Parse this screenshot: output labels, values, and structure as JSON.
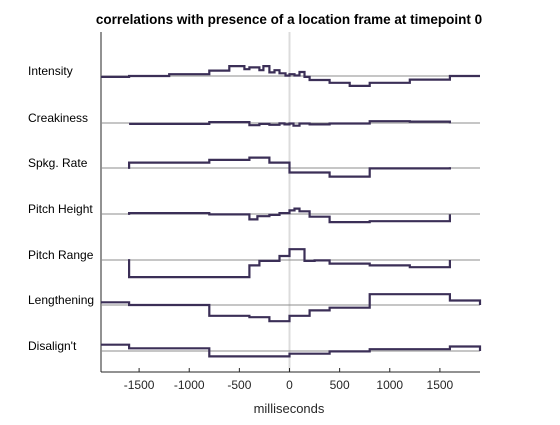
{
  "chart_data": {
    "type": "line",
    "title": "correlations with presence of a location frame at timepoint 0",
    "xlabel": "milliseconds",
    "ylabel": "",
    "xlim": [
      -1880,
      1900
    ],
    "xticks": [
      -1500,
      -1000,
      -500,
      0,
      500,
      1000,
      1500
    ],
    "xtick_labels": [
      "-1500",
      "-1000",
      "-500",
      "0",
      "500",
      "1000",
      "1500"
    ],
    "reference_line_x": 0,
    "step_units": "correlation (relative to each row baseline, arbitrary scale)",
    "series": [
      {
        "name": "Intensity",
        "points": [
          [
            -1880,
            -0.05
          ],
          [
            -1600,
            -0.05
          ],
          [
            -1600,
            0.0
          ],
          [
            -1200,
            0.0
          ],
          [
            -1200,
            0.1
          ],
          [
            -800,
            0.1
          ],
          [
            -800,
            0.3
          ],
          [
            -600,
            0.3
          ],
          [
            -600,
            0.55
          ],
          [
            -450,
            0.55
          ],
          [
            -450,
            0.38
          ],
          [
            -400,
            0.38
          ],
          [
            -400,
            0.48
          ],
          [
            -300,
            0.48
          ],
          [
            -300,
            0.32
          ],
          [
            -260,
            0.32
          ],
          [
            -260,
            0.55
          ],
          [
            -200,
            0.55
          ],
          [
            -200,
            0.2
          ],
          [
            -150,
            0.2
          ],
          [
            -150,
            0.32
          ],
          [
            -100,
            0.32
          ],
          [
            -100,
            0.15
          ],
          [
            -40,
            0.15
          ],
          [
            -40,
            0.02
          ],
          [
            0,
            0.02
          ],
          [
            0,
            0.1
          ],
          [
            50,
            0.1
          ],
          [
            50,
            0.03
          ],
          [
            100,
            0.03
          ],
          [
            100,
            0.22
          ],
          [
            150,
            0.22
          ],
          [
            150,
            -0.05
          ],
          [
            200,
            -0.05
          ],
          [
            200,
            -0.22
          ],
          [
            400,
            -0.22
          ],
          [
            400,
            -0.38
          ],
          [
            600,
            -0.38
          ],
          [
            600,
            -0.55
          ],
          [
            800,
            -0.55
          ],
          [
            800,
            -0.38
          ],
          [
            1200,
            -0.38
          ],
          [
            1200,
            -0.2
          ],
          [
            1600,
            -0.2
          ],
          [
            1600,
            0.0
          ],
          [
            1900,
            0.0
          ]
        ]
      },
      {
        "name": "Creakiness",
        "points": [
          [
            -1600,
            -0.05
          ],
          [
            -800,
            -0.05
          ],
          [
            -800,
            0.05
          ],
          [
            -400,
            0.05
          ],
          [
            -400,
            -0.12
          ],
          [
            -300,
            -0.12
          ],
          [
            -300,
            -0.05
          ],
          [
            -200,
            -0.05
          ],
          [
            -200,
            -0.1
          ],
          [
            -100,
            -0.1
          ],
          [
            -100,
            -0.02
          ],
          [
            -50,
            -0.02
          ],
          [
            -50,
            -0.08
          ],
          [
            0,
            -0.08
          ],
          [
            0,
            -0.03
          ],
          [
            40,
            -0.03
          ],
          [
            40,
            -0.15
          ],
          [
            100,
            -0.15
          ],
          [
            100,
            -0.03
          ],
          [
            200,
            -0.03
          ],
          [
            200,
            -0.08
          ],
          [
            400,
            -0.08
          ],
          [
            400,
            -0.03
          ],
          [
            800,
            -0.03
          ],
          [
            800,
            0.1
          ],
          [
            1200,
            0.1
          ],
          [
            1200,
            0.08
          ],
          [
            1600,
            0.08
          ],
          [
            1600,
            -0.02
          ]
        ]
      },
      {
        "name": "Spkg. Rate",
        "points": [
          [
            -1600,
            -0.05
          ],
          [
            -1600,
            0.3
          ],
          [
            -800,
            0.3
          ],
          [
            -800,
            0.45
          ],
          [
            -400,
            0.45
          ],
          [
            -400,
            0.58
          ],
          [
            -200,
            0.58
          ],
          [
            -200,
            0.3
          ],
          [
            0,
            0.3
          ],
          [
            0,
            -0.25
          ],
          [
            400,
            -0.25
          ],
          [
            400,
            -0.48
          ],
          [
            800,
            -0.48
          ],
          [
            800,
            -0.02
          ],
          [
            1600,
            -0.02
          ],
          [
            1600,
            0.05
          ]
        ]
      },
      {
        "name": "Pitch Height",
        "points": [
          [
            -1600,
            -0.05
          ],
          [
            -1600,
            0.05
          ],
          [
            -800,
            0.05
          ],
          [
            -800,
            -0.02
          ],
          [
            -400,
            -0.02
          ],
          [
            -400,
            -0.3
          ],
          [
            -320,
            -0.3
          ],
          [
            -320,
            -0.12
          ],
          [
            -200,
            -0.12
          ],
          [
            -200,
            -0.05
          ],
          [
            -100,
            -0.05
          ],
          [
            -100,
            0.05
          ],
          [
            0,
            0.05
          ],
          [
            0,
            0.2
          ],
          [
            50,
            0.2
          ],
          [
            50,
            0.3
          ],
          [
            100,
            0.3
          ],
          [
            100,
            0.15
          ],
          [
            200,
            0.15
          ],
          [
            200,
            -0.15
          ],
          [
            400,
            -0.15
          ],
          [
            400,
            -0.45
          ],
          [
            800,
            -0.45
          ],
          [
            800,
            -0.4
          ],
          [
            1600,
            -0.4
          ],
          [
            1600,
            -0.02
          ]
        ]
      },
      {
        "name": "Pitch Range",
        "points": [
          [
            -1600,
            0.05
          ],
          [
            -1600,
            -0.95
          ],
          [
            -400,
            -0.95
          ],
          [
            -400,
            -0.3
          ],
          [
            -300,
            -0.3
          ],
          [
            -300,
            -0.05
          ],
          [
            -100,
            -0.05
          ],
          [
            -100,
            0.22
          ],
          [
            0,
            0.22
          ],
          [
            0,
            0.6
          ],
          [
            150,
            0.6
          ],
          [
            150,
            -0.05
          ],
          [
            250,
            -0.05
          ],
          [
            250,
            -0.02
          ],
          [
            400,
            -0.02
          ],
          [
            400,
            -0.2
          ],
          [
            800,
            -0.2
          ],
          [
            800,
            -0.3
          ],
          [
            1200,
            -0.3
          ],
          [
            1200,
            -0.4
          ],
          [
            1600,
            -0.4
          ],
          [
            1600,
            0.0
          ]
        ]
      },
      {
        "name": "Lengthening",
        "points": [
          [
            -1880,
            0.15
          ],
          [
            -1600,
            0.15
          ],
          [
            -1600,
            0.0
          ],
          [
            -800,
            0.0
          ],
          [
            -800,
            -0.6
          ],
          [
            -400,
            -0.6
          ],
          [
            -400,
            -0.68
          ],
          [
            -200,
            -0.68
          ],
          [
            -200,
            -0.9
          ],
          [
            0,
            -0.9
          ],
          [
            0,
            -0.6
          ],
          [
            200,
            -0.6
          ],
          [
            200,
            -0.3
          ],
          [
            400,
            -0.3
          ],
          [
            400,
            -0.15
          ],
          [
            800,
            -0.15
          ],
          [
            800,
            0.6
          ],
          [
            1600,
            0.6
          ],
          [
            1600,
            0.25
          ],
          [
            1900,
            0.25
          ],
          [
            1900,
            0.0
          ]
        ]
      },
      {
        "name": "Disalign't",
        "points": [
          [
            -1880,
            0.35
          ],
          [
            -1600,
            0.35
          ],
          [
            -1600,
            0.15
          ],
          [
            -800,
            0.15
          ],
          [
            -800,
            -0.3
          ],
          [
            0,
            -0.3
          ],
          [
            0,
            -0.15
          ],
          [
            400,
            -0.15
          ],
          [
            400,
            -0.02
          ],
          [
            800,
            -0.02
          ],
          [
            800,
            0.1
          ],
          [
            1600,
            0.1
          ],
          [
            1600,
            0.25
          ],
          [
            1900,
            0.25
          ],
          [
            1900,
            0.0
          ]
        ]
      }
    ],
    "line_color": "#3b2f57",
    "baseline_color": "#8c8c8c",
    "zero_line_color": "#dcdcdc"
  }
}
